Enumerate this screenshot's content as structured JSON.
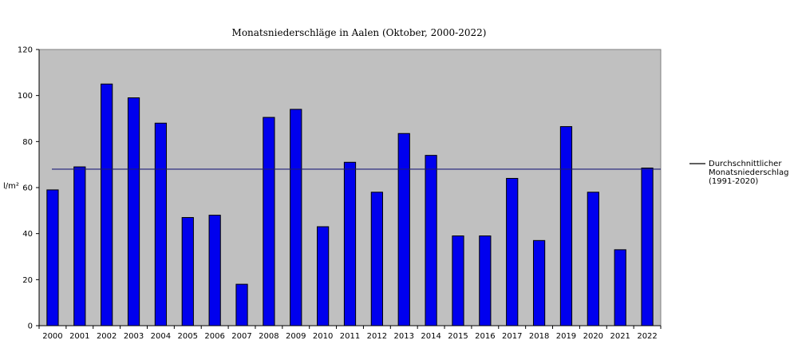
{
  "chart_data": {
    "type": "bar",
    "title": "Monatsniederschläge in Aalen (Oktober, 2000-2022)",
    "ylabel": "l/m²",
    "xlabel": "",
    "ylim": [
      0,
      120
    ],
    "yticks": [
      "0",
      "20",
      "40",
      "60",
      "80",
      "100",
      "120"
    ],
    "categories": [
      "2000",
      "2001",
      "2002",
      "2003",
      "2004",
      "2005",
      "2006",
      "2007",
      "2008",
      "2009",
      "2010",
      "2011",
      "2012",
      "2013",
      "2014",
      "2015",
      "2016",
      "2017",
      "2018",
      "2019",
      "2020",
      "2021",
      "2022"
    ],
    "values": [
      59,
      69,
      105,
      99,
      88,
      47,
      48,
      18,
      90.5,
      94,
      43,
      71,
      58,
      83.5,
      74,
      39,
      39,
      64,
      37,
      86.5,
      58,
      33,
      68.5
    ],
    "reference_line": {
      "value": 68,
      "label_lines": [
        "Durchschnittlicher",
        "Monatsniederschlag",
        "(1991-2020)"
      ]
    },
    "grid": false,
    "legend_placement": "right",
    "colors": {
      "bar_fill": "#0000ee",
      "bar_stroke": "#000000",
      "plot_bg": "#c0c0c0",
      "reference_line": "#1c1c7a"
    }
  }
}
